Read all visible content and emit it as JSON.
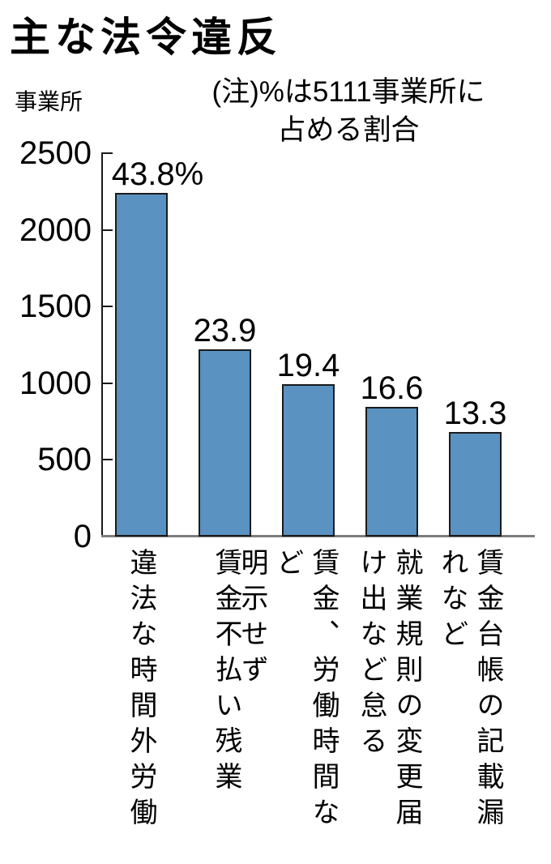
{
  "title": "主な法令違反",
  "chart_data": {
    "type": "bar",
    "title": "主な法令違反",
    "ylabel": "事業所",
    "note_lines": [
      "(注)%は5111事業所に",
      "占める割合"
    ],
    "categories": [
      "違法な時間外労働",
      "賃金不払い残業",
      "賃金、労働時間など明示せず",
      "就業規則の変更届け出など怠る",
      "賃金台帳の記載漏れなど"
    ],
    "category_display_lines": [
      [
        "違法な時間外労働"
      ],
      [
        "賃金不払い残業"
      ],
      [
        "賃金、労働時間など",
        "明示せず"
      ],
      [
        "就業規則の変更届",
        "け出など怠る"
      ],
      [
        "賃金台帳の記載漏",
        "れなど"
      ]
    ],
    "values": [
      2239,
      1222,
      992,
      848,
      680
    ],
    "value_labels": [
      "43.8%",
      "23.9",
      "19.4",
      "16.6",
      "13.3"
    ],
    "percent_of_total": [
      43.8,
      23.9,
      19.4,
      16.6,
      13.3
    ],
    "y_ticks": [
      0,
      500,
      1000,
      1500,
      2000,
      2500
    ],
    "ylim": [
      0,
      2500
    ],
    "grid": false,
    "legend": "none",
    "bar_color": "#5a92c1",
    "bar_border_color": "#1b1b1b",
    "axis_color": "#1a1a1a",
    "baseline_color": "#7d7d7d"
  }
}
